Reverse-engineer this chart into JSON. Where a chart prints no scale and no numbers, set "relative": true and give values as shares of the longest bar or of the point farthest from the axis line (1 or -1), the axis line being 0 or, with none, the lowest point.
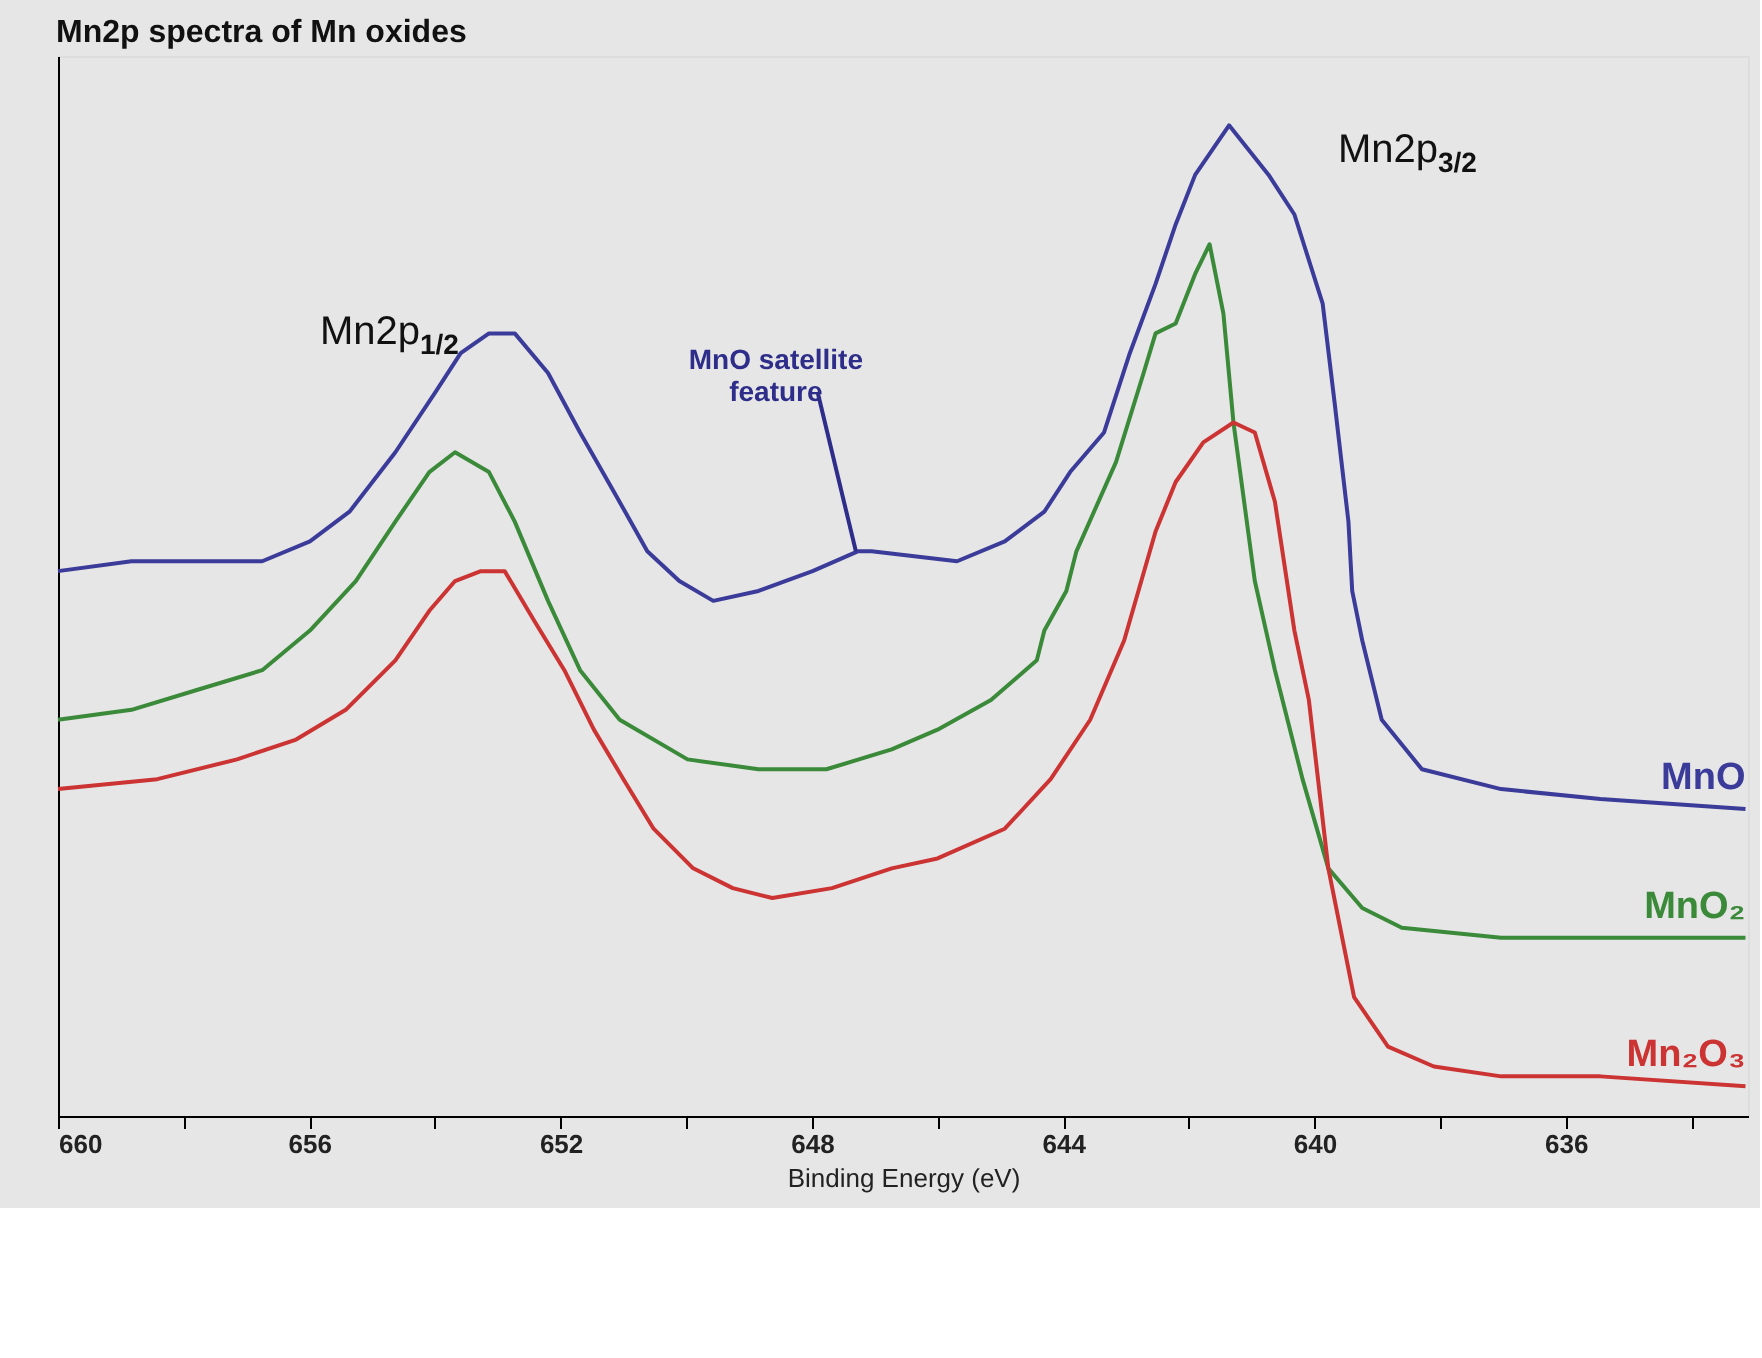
{
  "chart_data": {
    "type": "line",
    "title": "Mn2p spectra of Mn oxides",
    "xlabel": "Binding Energy (eV)",
    "relative": true,
    "grid": false,
    "legend": false,
    "marker": "none",
    "line_style": "solid",
    "xlim": [
      660,
      633.1
    ],
    "xticks": [
      660,
      {
        "value": 658,
        "label": null
      },
      656,
      {
        "value": 654,
        "label": null
      },
      652,
      {
        "value": 650,
        "label": null
      },
      648,
      {
        "value": 646,
        "label": null
      },
      644,
      {
        "value": 642,
        "label": null
      },
      640,
      {
        "value": 638,
        "label": null
      },
      636,
      {
        "value": 634,
        "label": null
      }
    ],
    "series": [
      {
        "name": "MnO",
        "color": "#3b3b9a",
        "x": [
          660,
          658.83,
          657.79,
          656.75,
          655.99,
          655.36,
          654.63,
          654.0,
          653.59,
          653.14,
          652.73,
          652.2,
          651.69,
          651.15,
          650.62,
          650.11,
          649.57,
          648.85,
          647.99,
          647.27,
          647.05,
          645.69,
          644.93,
          644.3,
          643.89,
          643.35,
          642.94,
          642.53,
          642.21,
          641.9,
          641.36,
          640.73,
          640.32,
          639.87,
          639.68,
          639.46,
          639.4,
          639.24,
          638.93,
          638.29,
          637.03,
          635.45,
          633.14
        ],
        "values": [
          0.55,
          0.56,
          0.56,
          0.56,
          0.58,
          0.61,
          0.67,
          0.73,
          0.77,
          0.79,
          0.79,
          0.75,
          0.69,
          0.63,
          0.57,
          0.54,
          0.52,
          0.53,
          0.55,
          0.57,
          0.57,
          0.56,
          0.58,
          0.61,
          0.65,
          0.69,
          0.77,
          0.84,
          0.9,
          0.95,
          1.0,
          0.95,
          0.91,
          0.82,
          0.72,
          0.6,
          0.53,
          0.48,
          0.4,
          0.35,
          0.33,
          0.32,
          0.31
        ]
      },
      {
        "name": "MnO₂",
        "color": "#3a8a3a",
        "x": [
          660,
          658.83,
          657.79,
          656.75,
          655.99,
          655.26,
          654.63,
          654.09,
          653.68,
          653.14,
          652.73,
          652.2,
          651.69,
          651.06,
          649.98,
          648.85,
          647.77,
          646.73,
          646.0,
          645.15,
          644.42,
          644.3,
          643.95,
          643.79,
          643.16,
          642.72,
          642.53,
          642.21,
          641.9,
          641.67,
          641.45,
          641.29,
          640.95,
          640.63,
          640.19,
          639.78,
          639.24,
          638.61,
          637.03,
          635.45,
          633.14
        ],
        "values": [
          0.4,
          0.41,
          0.43,
          0.45,
          0.49,
          0.54,
          0.6,
          0.65,
          0.67,
          0.65,
          0.6,
          0.52,
          0.45,
          0.4,
          0.36,
          0.35,
          0.35,
          0.37,
          0.39,
          0.42,
          0.46,
          0.49,
          0.53,
          0.57,
          0.66,
          0.75,
          0.79,
          0.8,
          0.85,
          0.88,
          0.81,
          0.7,
          0.54,
          0.45,
          0.34,
          0.25,
          0.21,
          0.19,
          0.18,
          0.18,
          0.18
        ]
      },
      {
        "name": "Mn₂O₃",
        "color": "#cc3333",
        "x": [
          660,
          658.42,
          657.15,
          656.21,
          655.42,
          654.63,
          654.09,
          653.68,
          653.27,
          652.89,
          652.42,
          651.94,
          651.47,
          651.0,
          650.52,
          649.89,
          649.26,
          648.63,
          647.68,
          646.73,
          646.0,
          644.93,
          644.2,
          643.57,
          643.03,
          642.53,
          642.21,
          641.77,
          641.29,
          640.95,
          640.63,
          640.32,
          640.09,
          639.78,
          639.37,
          638.83,
          638.1,
          637.03,
          635.45,
          633.14
        ],
        "values": [
          0.33,
          0.34,
          0.36,
          0.38,
          0.41,
          0.46,
          0.51,
          0.54,
          0.55,
          0.55,
          0.5,
          0.45,
          0.39,
          0.34,
          0.29,
          0.25,
          0.23,
          0.22,
          0.23,
          0.25,
          0.26,
          0.29,
          0.34,
          0.4,
          0.48,
          0.59,
          0.64,
          0.68,
          0.7,
          0.69,
          0.62,
          0.49,
          0.42,
          0.25,
          0.12,
          0.07,
          0.05,
          0.04,
          0.04,
          0.03
        ]
      }
    ],
    "annotations": [
      "Mn2p$_{1/2}$",
      "Mn2p$_{3/2}$",
      {
        "text": "MnO satellite\nfeature",
        "x": 647.3,
        "y": 0.57
      }
    ]
  }
}
